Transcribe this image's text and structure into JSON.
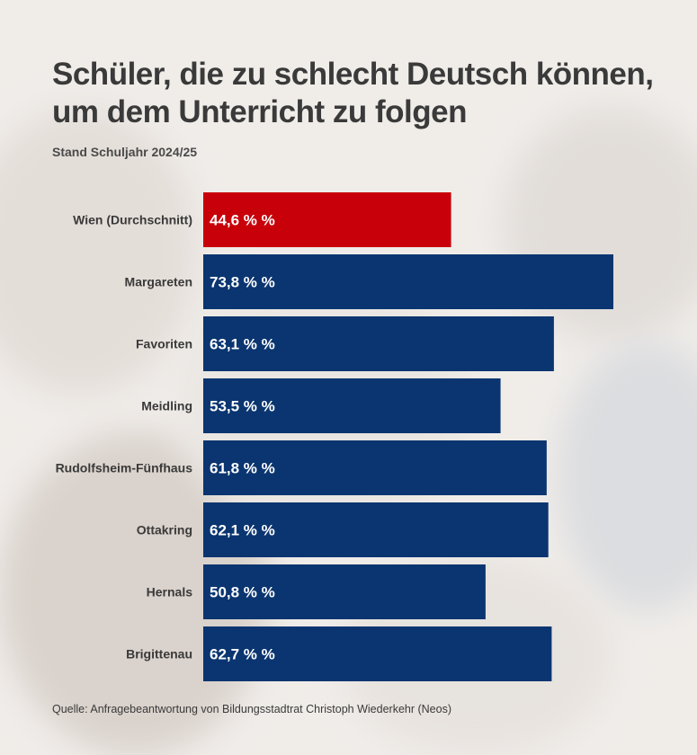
{
  "colors": {
    "highlight": "#c8000a",
    "bar": "#0a3570"
  },
  "chart_data": {
    "type": "bar",
    "orientation": "horizontal",
    "title": "Schüler, die zu schlecht Deutsch können, um dem Unterricht zu folgen",
    "subtitle": "Stand Schuljahr 2024/25",
    "categories": [
      "Wien (Durchschnitt)",
      "Margareten",
      "Favoriten",
      "Meidling",
      "Rudolfsheim-Fünfhaus",
      "Ottakring",
      "Hernals",
      "Brigittenau"
    ],
    "values": [
      44.6,
      73.8,
      63.1,
      53.5,
      61.8,
      62.1,
      50.8,
      62.7
    ],
    "data_labels": [
      "44,6 % %",
      "73,8 % %",
      "63,1 % %",
      "53,5 % %",
      "61,8 % %",
      "62,1 % %",
      "50,8 % %",
      "62,7 % %"
    ],
    "highlight_index": 0,
    "xlim": [
      0,
      73.8
    ],
    "grid": false,
    "xlabel": "",
    "ylabel": "",
    "source": "Quelle: Anfragebeantwortung von Bildungsstadtrat Christoph Wiederkehr (Neos)"
  }
}
